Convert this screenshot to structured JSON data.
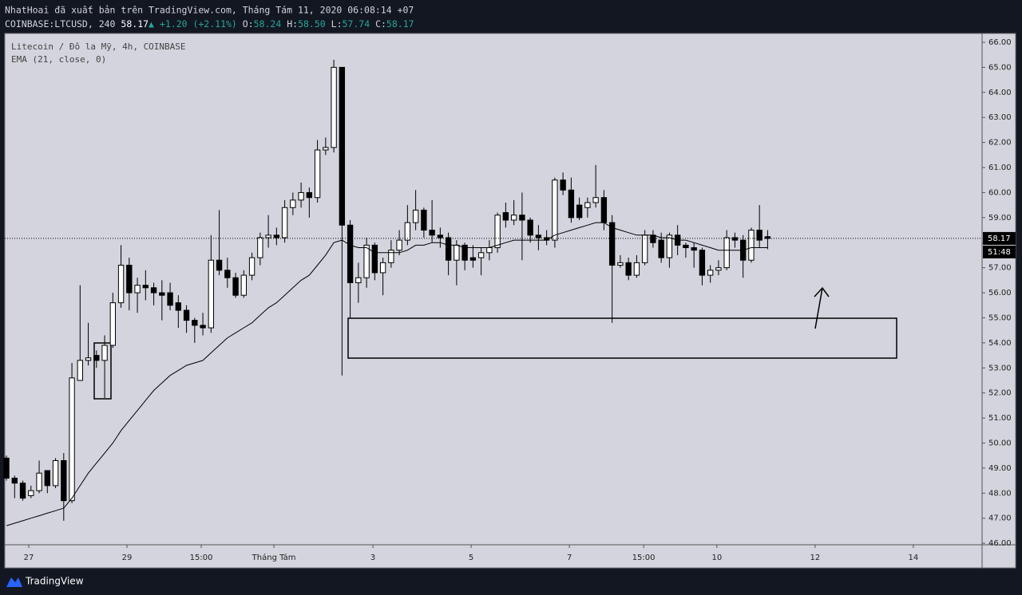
{
  "chart_data": {
    "type": "candlestick",
    "header": {
      "line1": "NhatHoai đã xuất bản trên TradingView.com, Tháng Tám 11, 2020 06:08:14 +07",
      "symbol": "COINBASE:LTCUSD, 240",
      "last": "58.17",
      "arrow": "▲",
      "change": "+1.20 (+2.11%)",
      "o_label": "O:",
      "open": "58.24",
      "h_label": "H:",
      "high": "58.50",
      "l_label": "L:",
      "low": "57.74",
      "c_label": "C:",
      "close": "58.17"
    },
    "x": [
      0,
      1,
      2,
      3,
      4,
      5,
      6,
      7,
      8,
      9,
      10,
      11,
      12,
      13,
      14,
      15,
      16,
      17,
      18,
      19,
      20,
      21,
      22,
      23,
      24,
      25,
      26,
      27,
      28,
      29,
      30,
      31,
      32,
      33,
      34,
      35,
      36,
      37,
      38,
      39,
      40,
      41,
      42,
      43,
      44,
      45,
      46,
      47,
      48,
      49,
      50,
      51,
      52,
      53,
      54,
      55,
      56,
      57,
      58,
      59,
      60,
      61,
      62,
      63,
      64,
      65,
      66,
      67,
      68,
      69,
      70,
      71,
      72,
      73,
      74,
      75,
      76,
      77,
      78,
      79,
      80,
      81,
      82,
      83,
      84,
      85,
      86,
      87,
      88,
      89,
      90,
      91,
      92,
      93
    ],
    "series": [
      {
        "name": "Litecoin / Đô la Mỹ, 4h, COINBASE",
        "up_color": "#ffffff",
        "down_color": "#000000",
        "open": [
          49.4,
          48.6,
          48.4,
          47.9,
          48.1,
          48.9,
          48.3,
          49.3,
          47.7,
          52.5,
          53.3,
          53.5,
          53.3,
          53.9,
          55.6,
          57.1,
          56.0,
          56.3,
          56.2,
          56.0,
          56.0,
          55.6,
          55.3,
          54.9,
          54.7,
          54.6,
          57.3,
          56.9,
          56.6,
          55.9,
          56.7,
          57.4,
          58.2,
          58.3,
          58.2,
          59.4,
          59.7,
          60.0,
          59.8,
          61.7,
          61.8,
          65.0,
          58.7,
          56.4,
          56.6,
          57.9,
          56.8,
          57.2,
          57.7,
          58.1,
          58.8,
          59.3,
          58.5,
          58.3,
          58.2,
          57.3,
          57.9,
          57.4,
          57.4,
          57.6,
          57.8,
          59.2,
          58.9,
          59.1,
          58.9,
          58.3,
          58.2,
          58.1,
          60.5,
          60.1,
          59.5,
          59.4,
          59.6,
          59.8,
          58.8,
          57.1,
          57.2,
          56.7,
          57.2,
          58.3,
          58.1,
          57.4,
          58.3,
          57.9,
          57.8,
          57.7,
          56.7,
          56.9,
          57.0,
          58.2,
          58.1,
          57.3,
          58.5,
          58.24
        ],
        "high": [
          49.5,
          48.7,
          48.5,
          48.3,
          49.3,
          48.9,
          49.4,
          49.6,
          53.2,
          56.3,
          54.8,
          53.7,
          54.3,
          56.0,
          57.9,
          57.4,
          56.6,
          56.9,
          56.4,
          56.5,
          56.4,
          55.9,
          55.5,
          55.0,
          55.2,
          58.3,
          59.3,
          57.4,
          56.8,
          56.9,
          57.6,
          58.4,
          59.1,
          58.6,
          59.7,
          60.0,
          60.4,
          60.2,
          62.1,
          62.2,
          65.3,
          65.0,
          58.9,
          57.2,
          58.2,
          58.0,
          57.4,
          58.1,
          58.5,
          59.5,
          60.1,
          59.4,
          59.7,
          58.6,
          58.4,
          58.1,
          58.0,
          57.9,
          57.8,
          58.1,
          59.2,
          59.6,
          59.7,
          60.0,
          59.0,
          58.7,
          58.5,
          60.6,
          60.8,
          60.6,
          59.8,
          59.8,
          61.1,
          60.1,
          59.1,
          57.5,
          57.4,
          57.5,
          58.5,
          58.5,
          58.4,
          58.4,
          58.7,
          58.0,
          58.0,
          57.8,
          57.1,
          57.3,
          58.5,
          58.4,
          58.3,
          58.6,
          59.5,
          58.5
        ],
        "low": [
          48.5,
          47.8,
          47.7,
          47.8,
          48.0,
          48.0,
          48.2,
          46.9,
          47.6,
          52.5,
          53.1,
          53.0,
          51.8,
          53.8,
          55.4,
          55.3,
          55.2,
          55.7,
          55.5,
          54.9,
          55.3,
          54.6,
          54.4,
          54.0,
          54.3,
          54.4,
          56.7,
          56.2,
          55.8,
          55.8,
          56.5,
          57.1,
          57.8,
          57.9,
          58.0,
          59.1,
          59.4,
          59.0,
          59.6,
          61.5,
          61.6,
          52.7,
          55.0,
          55.6,
          56.2,
          56.5,
          55.9,
          57.0,
          57.5,
          57.9,
          58.5,
          58.2,
          58.0,
          57.8,
          56.7,
          56.3,
          56.9,
          57.0,
          56.7,
          57.3,
          57.6,
          58.6,
          58.7,
          57.3,
          58.0,
          57.7,
          57.9,
          57.8,
          59.9,
          58.8,
          58.9,
          59.0,
          59.4,
          58.5,
          54.8,
          57.0,
          56.5,
          56.6,
          57.1,
          57.8,
          57.2,
          57.0,
          57.5,
          57.4,
          57.0,
          56.3,
          56.4,
          56.7,
          56.9,
          57.8,
          56.6,
          57.2,
          57.8,
          57.74
        ],
        "close": [
          48.6,
          48.4,
          47.8,
          48.1,
          48.8,
          48.3,
          49.3,
          47.7,
          52.6,
          53.3,
          53.4,
          53.3,
          53.9,
          55.6,
          57.1,
          56.0,
          56.3,
          56.2,
          56.0,
          55.9,
          55.5,
          55.3,
          54.9,
          54.7,
          54.6,
          57.3,
          56.9,
          56.6,
          55.9,
          56.7,
          57.4,
          58.2,
          58.3,
          58.2,
          59.4,
          59.7,
          60.0,
          59.8,
          61.7,
          61.8,
          65.0,
          58.7,
          56.4,
          56.6,
          57.9,
          56.8,
          57.2,
          57.7,
          58.1,
          58.8,
          59.3,
          58.5,
          58.3,
          58.2,
          57.3,
          57.9,
          57.3,
          57.3,
          57.6,
          57.8,
          59.1,
          58.9,
          59.1,
          58.9,
          58.3,
          58.2,
          58.1,
          60.5,
          60.1,
          59.0,
          59.0,
          59.6,
          59.8,
          58.8,
          57.1,
          57.2,
          56.7,
          57.2,
          58.3,
          58.0,
          57.4,
          58.3,
          57.9,
          57.8,
          57.7,
          56.7,
          56.9,
          57.0,
          58.2,
          58.1,
          57.3,
          58.5,
          58.1,
          58.17
        ]
      },
      {
        "name": "EMA (21, close, 0)",
        "color": "#000000",
        "values": [
          46.7,
          46.8,
          46.9,
          47.0,
          47.1,
          47.2,
          47.3,
          47.4,
          47.8,
          48.3,
          48.8,
          49.2,
          49.6,
          50.0,
          50.5,
          50.9,
          51.3,
          51.7,
          52.1,
          52.4,
          52.7,
          52.9,
          53.1,
          53.2,
          53.3,
          53.6,
          53.9,
          54.2,
          54.4,
          54.6,
          54.8,
          55.1,
          55.4,
          55.6,
          55.9,
          56.2,
          56.5,
          56.7,
          57.1,
          57.5,
          58.0,
          58.1,
          57.9,
          57.8,
          57.8,
          57.6,
          57.6,
          57.6,
          57.6,
          57.7,
          57.9,
          57.9,
          58.0,
          58.0,
          57.9,
          57.9,
          57.8,
          57.8,
          57.8,
          57.8,
          57.9,
          58.0,
          58.1,
          58.1,
          58.1,
          58.1,
          58.1,
          58.3,
          58.4,
          58.5,
          58.6,
          58.7,
          58.8,
          58.8,
          58.6,
          58.5,
          58.4,
          58.3,
          58.3,
          58.3,
          58.2,
          58.2,
          58.1,
          58.1,
          58.0,
          57.9,
          57.8,
          57.7,
          57.7,
          57.7,
          57.7,
          57.8,
          57.8,
          57.8
        ]
      }
    ],
    "xlim": [
      -0.2,
      119.2
    ],
    "xticks": [
      {
        "value": 2.73,
        "label": "27"
      },
      {
        "value": 14.73,
        "label": "29"
      },
      {
        "value": 23.8,
        "label": "15:00"
      },
      {
        "value": 32.68,
        "label": "Tháng Tám"
      },
      {
        "value": 44.78,
        "label": "3"
      },
      {
        "value": 56.78,
        "label": "5"
      },
      {
        "value": 68.78,
        "label": "7"
      },
      {
        "value": 77.85,
        "label": "15:00"
      },
      {
        "value": 86.8,
        "label": "10"
      },
      {
        "value": 98.8,
        "label": "12"
      },
      {
        "value": 110.8,
        "label": "14"
      }
    ],
    "ylim": [
      45.94,
      66.35
    ],
    "yticks": [
      {
        "value": 46,
        "label": "46.00"
      },
      {
        "value": 47,
        "label": "47.00"
      },
      {
        "value": 48,
        "label": "48.00"
      },
      {
        "value": 49,
        "label": "49.00"
      },
      {
        "value": 50,
        "label": "50.00"
      },
      {
        "value": 51,
        "label": "51.00"
      },
      {
        "value": 52,
        "label": "52.00"
      },
      {
        "value": 53,
        "label": "53.00"
      },
      {
        "value": 54,
        "label": "54.00"
      },
      {
        "value": 55,
        "label": "55.00"
      },
      {
        "value": 56,
        "label": "56.00"
      },
      {
        "value": 57,
        "label": "57.00"
      },
      {
        "value": 58,
        "label": "58.00"
      },
      {
        "value": 59,
        "label": "59.00"
      },
      {
        "value": 60,
        "label": "60.00"
      },
      {
        "value": 61,
        "label": "61.00"
      },
      {
        "value": 62,
        "label": "62.00"
      },
      {
        "value": 63,
        "label": "63.00"
      },
      {
        "value": 64,
        "label": "64.00"
      },
      {
        "value": 65,
        "label": "65.00"
      },
      {
        "value": 66,
        "label": "66.00"
      }
    ],
    "last_price": {
      "value": 58.17,
      "label": "58.17"
    },
    "countdown": "51:48",
    "footer": "TradingView"
  }
}
